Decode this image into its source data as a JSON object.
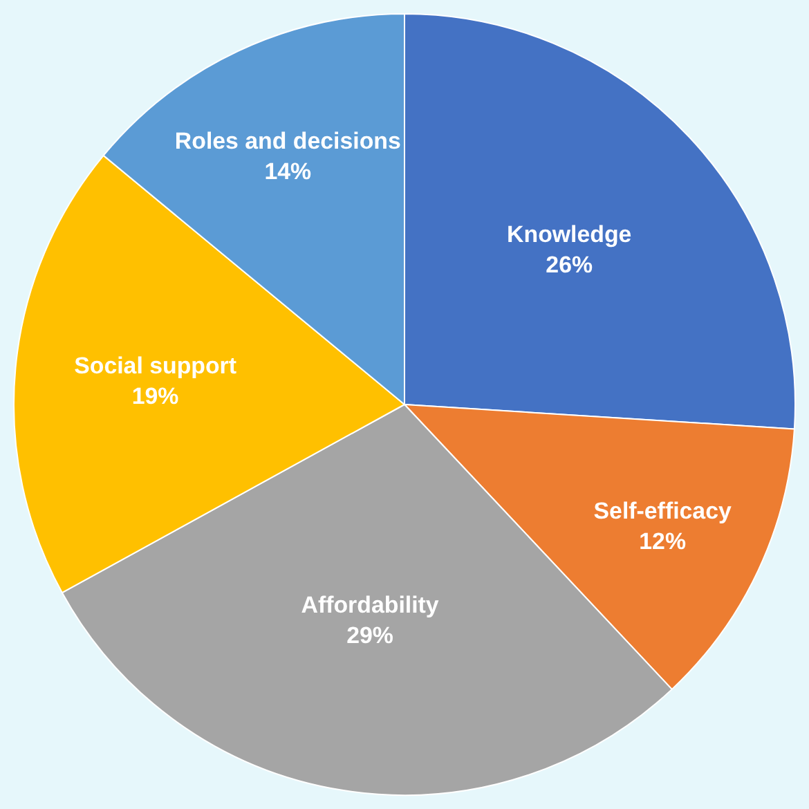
{
  "chart_data": {
    "type": "pie",
    "categories": [
      "Knowledge",
      "Self-efficacy",
      "Affordability",
      "Social support",
      "Roles and decisions"
    ],
    "values": [
      26,
      12,
      29,
      19,
      14
    ],
    "value_labels": [
      "26%",
      "12%",
      "29%",
      "19%",
      "14%"
    ],
    "colors": [
      "#4472c4",
      "#ed7d31",
      "#a5a5a5",
      "#ffc000",
      "#5b9bd5"
    ],
    "legend": false
  }
}
